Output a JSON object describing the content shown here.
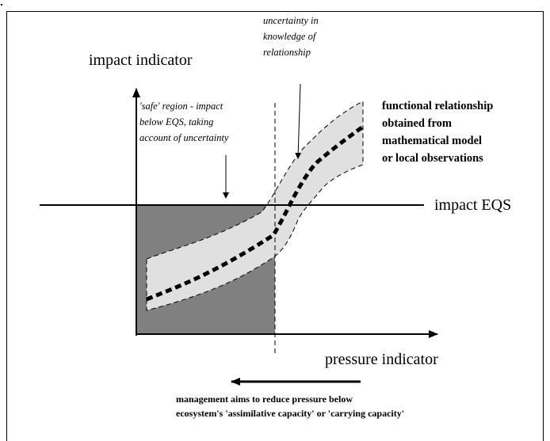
{
  "axes": {
    "y_label": "impact indicator",
    "x_label": "pressure indicator",
    "threshold_label": "impact EQS"
  },
  "annotations": {
    "uncertainty": [
      "uncertainty in",
      "knowledge of",
      "relationship"
    ],
    "safe_region": [
      "'safe' region - impact",
      "below EQS, taking",
      "account of uncertainty"
    ],
    "relationship": [
      "functional relationship",
      "obtained from",
      "mathematical model",
      "or local observations"
    ],
    "management": [
      "management aims to reduce pressure below",
      "ecosystem's 'assimilative capacity' or 'carrying capacity'"
    ]
  }
}
